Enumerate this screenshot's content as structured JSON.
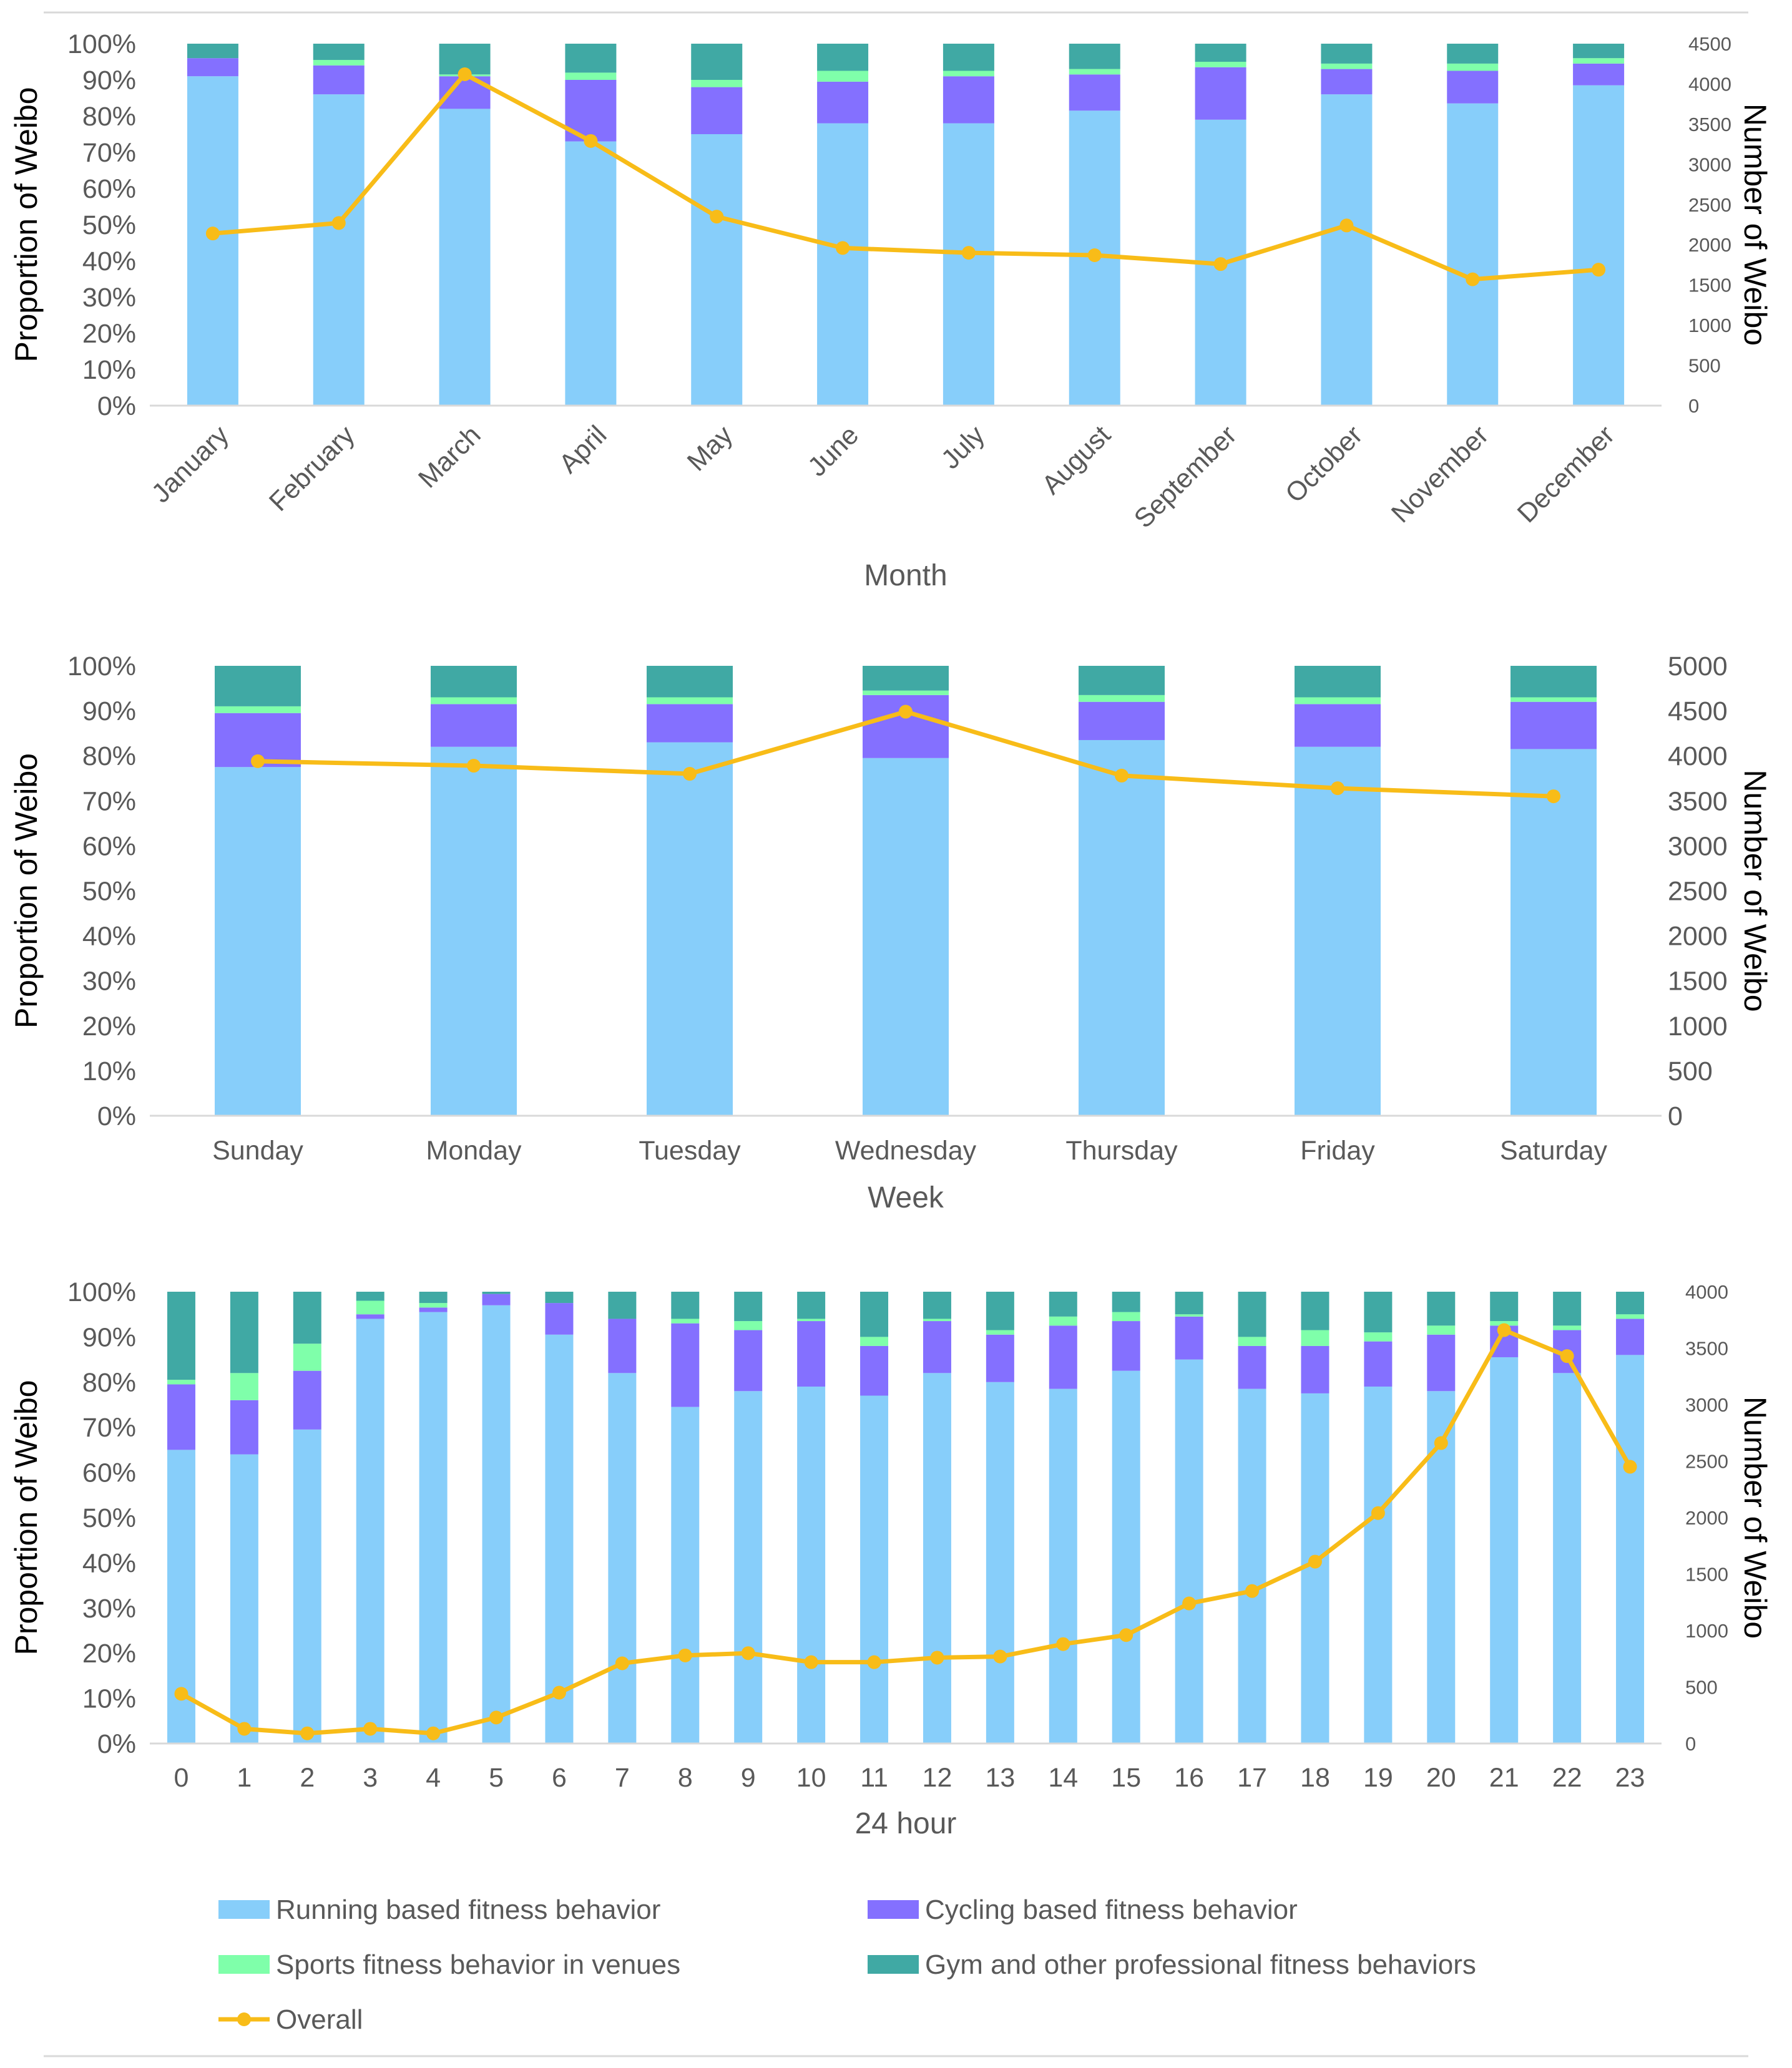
{
  "colors": {
    "running": "#87CEFA",
    "cycling": "#8470FF",
    "sports": "#7FFFAA",
    "gym": "#40A9A4",
    "overall": "#F8BC18"
  },
  "legend": [
    {
      "key": "running",
      "label": "Running based fitness behavior",
      "kind": "box"
    },
    {
      "key": "cycling",
      "label": "Cycling based fitness behavior",
      "kind": "box"
    },
    {
      "key": "sports",
      "label": "Sports fitness behavior in venues",
      "kind": "box"
    },
    {
      "key": "gym",
      "label": "Gym and other professional fitness behaviors",
      "kind": "box"
    },
    {
      "key": "overall",
      "label": "Overall",
      "kind": "line"
    }
  ],
  "chart_data": [
    {
      "type": "bar",
      "stacked": true,
      "xlabel": "Month",
      "ylabel": "Proportion of Weibo",
      "y2label": "Number of Weibo",
      "ylim": [
        0,
        100
      ],
      "y2lim": [
        0,
        4500
      ],
      "yticks": [
        "0%",
        "10%",
        "20%",
        "30%",
        "40%",
        "50%",
        "60%",
        "70%",
        "80%",
        "90%",
        "100%"
      ],
      "y2ticks": [
        "0",
        "500",
        "1000",
        "1500",
        "2000",
        "2500",
        "3000",
        "3500",
        "4000",
        "4500"
      ],
      "categories": [
        "January",
        "February",
        "March",
        "April",
        "May",
        "June",
        "July",
        "August",
        "September",
        "October",
        "November",
        "December"
      ],
      "series": [
        {
          "key": "running",
          "name": "Running based fitness behavior",
          "values": [
            91,
            86,
            82,
            73,
            75,
            78,
            78,
            81.5,
            79,
            86,
            83.5,
            88.5
          ]
        },
        {
          "key": "cycling",
          "name": "Cycling based fitness behavior",
          "values": [
            5,
            8,
            9,
            17,
            13,
            11.5,
            13,
            10,
            14.5,
            7,
            9,
            6
          ]
        },
        {
          "key": "sports",
          "name": "Sports fitness behavior in venues",
          "values": [
            0,
            1.5,
            0.5,
            2,
            2,
            3,
            1.5,
            1.5,
            1.5,
            1.5,
            2,
            1.5
          ]
        },
        {
          "key": "gym",
          "name": "Gym and other professional fitness behaviors",
          "values": [
            4,
            4.5,
            8.5,
            8,
            10,
            7.5,
            7.5,
            7,
            5,
            5.5,
            5.5,
            4
          ]
        }
      ],
      "overall": [
        2140,
        2270,
        4120,
        3290,
        2350,
        1960,
        1900,
        1870,
        1760,
        2240,
        1570,
        1690
      ]
    },
    {
      "type": "bar",
      "stacked": true,
      "xlabel": "Week",
      "ylabel": "Proportion of Weibo",
      "y2label": "Number of Weibo",
      "ylim": [
        0,
        100
      ],
      "y2lim": [
        0,
        5000
      ],
      "yticks": [
        "0%",
        "10%",
        "20%",
        "30%",
        "40%",
        "50%",
        "60%",
        "70%",
        "80%",
        "90%",
        "100%"
      ],
      "y2ticks": [
        "0",
        "500",
        "1000",
        "1500",
        "2000",
        "2500",
        "3000",
        "3500",
        "4000",
        "4500",
        "5000"
      ],
      "categories": [
        "Sunday",
        "Monday",
        "Tuesday",
        "Wednesday",
        "Thursday",
        "Friday",
        "Saturday"
      ],
      "series": [
        {
          "key": "running",
          "name": "Running based fitness behavior",
          "values": [
            77.5,
            82,
            83,
            79.5,
            83.5,
            82,
            81.5
          ]
        },
        {
          "key": "cycling",
          "name": "Cycling based fitness behavior",
          "values": [
            12,
            9.5,
            8.5,
            14,
            8.5,
            9.5,
            10.5
          ]
        },
        {
          "key": "sports",
          "name": "Sports fitness behavior in venues",
          "values": [
            1.5,
            1.5,
            1.5,
            1,
            1.5,
            1.5,
            1
          ]
        },
        {
          "key": "gym",
          "name": "Gym and other professional fitness behaviors",
          "values": [
            9,
            7,
            7,
            5.5,
            6.5,
            7,
            7
          ]
        }
      ],
      "overall": [
        3940,
        3890,
        3800,
        4490,
        3780,
        3640,
        3550
      ]
    },
    {
      "type": "bar",
      "stacked": true,
      "xlabel": "24 hour",
      "ylabel": "Proportion of Weibo",
      "y2label": "Number of Weibo",
      "ylim": [
        0,
        100
      ],
      "y2lim": [
        0,
        4000
      ],
      "yticks": [
        "0%",
        "10%",
        "20%",
        "30%",
        "40%",
        "50%",
        "60%",
        "70%",
        "80%",
        "90%",
        "100%"
      ],
      "y2ticks": [
        "0",
        "500",
        "1000",
        "1500",
        "2000",
        "2500",
        "3000",
        "3500",
        "4000"
      ],
      "categories": [
        "0",
        "1",
        "2",
        "3",
        "4",
        "5",
        "6",
        "7",
        "8",
        "9",
        "10",
        "11",
        "12",
        "13",
        "14",
        "15",
        "16",
        "17",
        "18",
        "19",
        "20",
        "21",
        "22",
        "23"
      ],
      "series": [
        {
          "key": "running",
          "name": "Running based fitness behavior",
          "values": [
            65,
            64,
            69.5,
            94,
            95.5,
            97,
            90.5,
            82,
            74.5,
            78,
            79,
            77,
            82,
            80,
            78.5,
            82.5,
            85,
            78.5,
            77.5,
            79,
            78,
            85.5,
            82,
            86
          ]
        },
        {
          "key": "cycling",
          "name": "Cycling based fitness behavior",
          "values": [
            14.5,
            12,
            13,
            1,
            1,
            2.5,
            7,
            12,
            18.5,
            13.5,
            14.5,
            11,
            11.5,
            10.5,
            14,
            11,
            9.5,
            9.5,
            10.5,
            10,
            12.5,
            7,
            9.5,
            8
          ]
        },
        {
          "key": "sports",
          "name": "Sports fitness behavior in venues",
          "values": [
            1,
            6,
            6,
            3,
            1,
            0,
            0,
            0,
            1,
            2,
            0.5,
            2,
            0.5,
            1,
            2,
            2,
            0.5,
            2,
            3.5,
            2,
            2,
            1,
            1,
            1
          ]
        },
        {
          "key": "gym",
          "name": "Gym and other professional fitness behaviors",
          "values": [
            19.5,
            18,
            11.5,
            2,
            2.5,
            0.5,
            2.5,
            6,
            6,
            6.5,
            6,
            10,
            6,
            8.5,
            5.5,
            4.5,
            5,
            10,
            8.5,
            9,
            7.5,
            6.5,
            7.5,
            5
          ]
        }
      ],
      "overall": [
        440,
        130,
        90,
        130,
        90,
        230,
        450,
        710,
        780,
        800,
        720,
        720,
        760,
        770,
        880,
        960,
        1240,
        1350,
        1610,
        2040,
        2660,
        3660,
        3430,
        2450
      ]
    }
  ]
}
